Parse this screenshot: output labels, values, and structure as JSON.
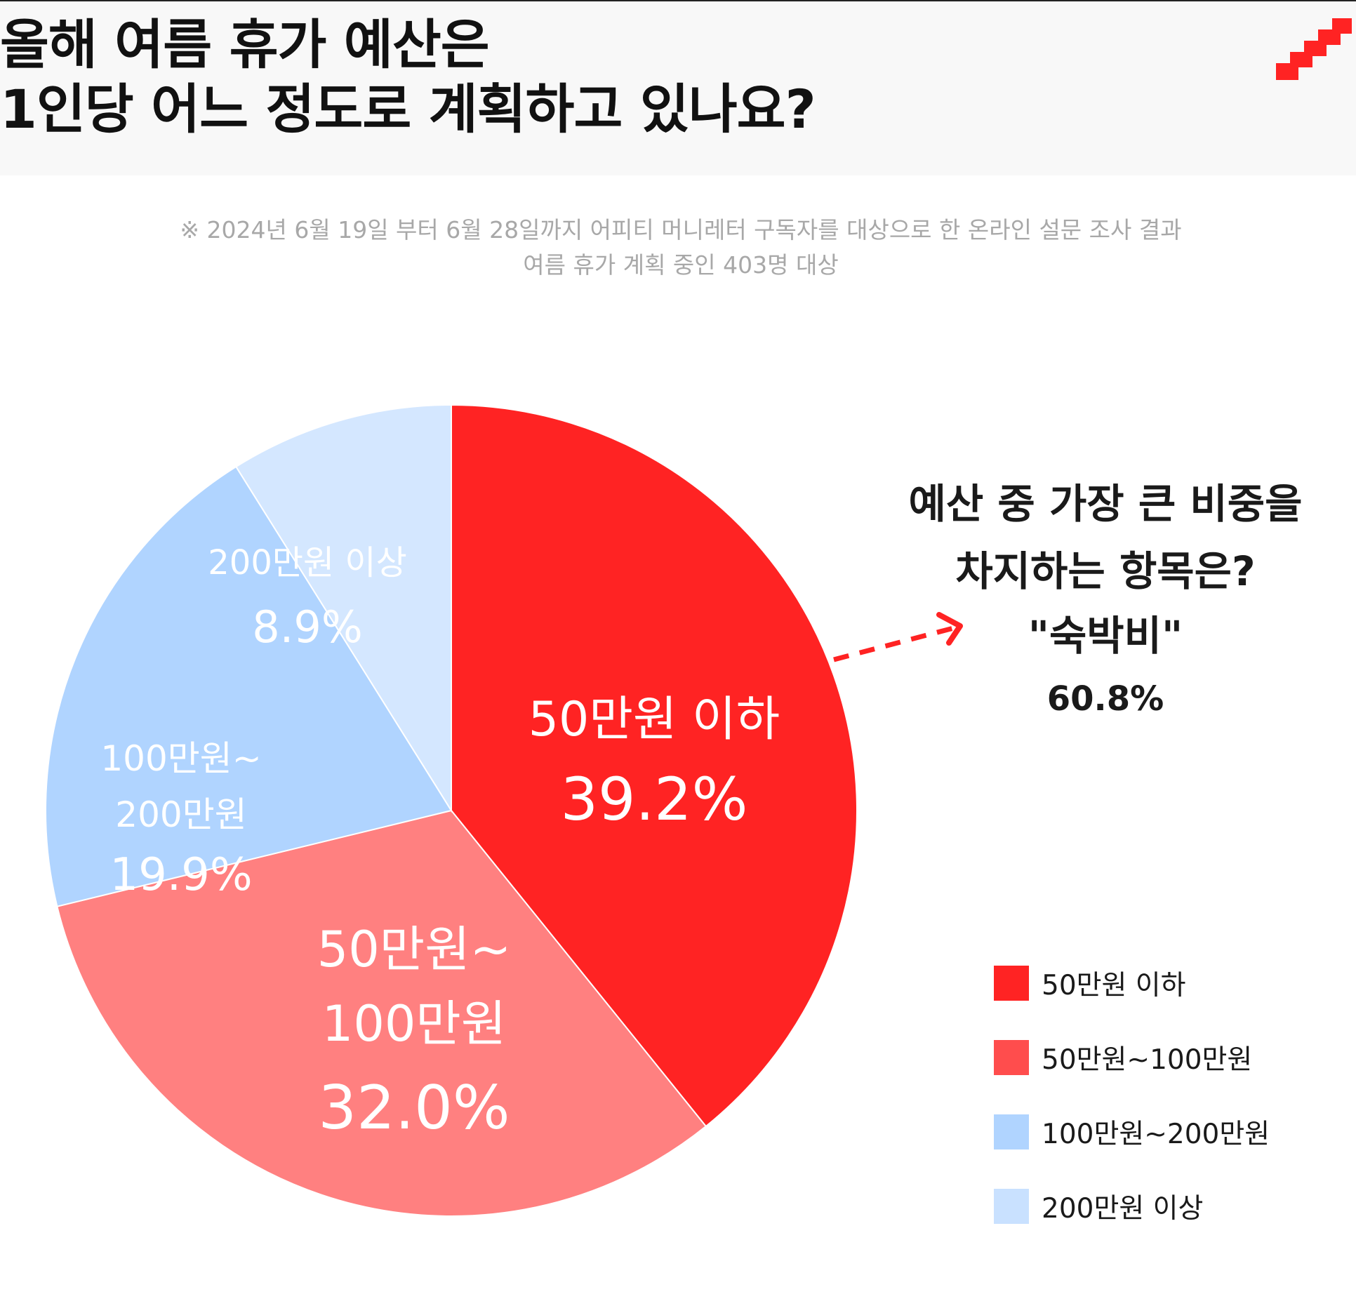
{
  "header": {
    "title_line1": "올해 여름 휴가 예산은",
    "title_line2": "1인당 어느 정도로 계획하고 있나요?"
  },
  "note": {
    "line1": "※ 2024년 6월 19일 부터 6월 28일까지 어피티 머니레터 구독자를 대상으로 한 온라인 설문 조사 결과",
    "line2": "여름 휴가 계획 중인 403명 대상"
  },
  "highlight": {
    "question_line1": "예산 중 가장 큰 비중을",
    "question_line2": "차지하는 항목은?",
    "answer": "\"숙박비\"",
    "answer_value": "60.8%"
  },
  "colors": {
    "accent": "#ff2323"
  },
  "chart_data": {
    "type": "pie",
    "unit": "%",
    "slices": [
      {
        "name": "50만원 이하",
        "label_lines": [
          "50만원 이하"
        ],
        "value": 39.2,
        "value_label": "39.2%",
        "color": "#ff2323"
      },
      {
        "name": "50만원~100만원",
        "label_lines": [
          "50만원~",
          "100만원"
        ],
        "value": 32.0,
        "value_label": "32.0%",
        "color": "#ff8080"
      },
      {
        "name": "100만원~200만원",
        "label_lines": [
          "100만원~",
          "200만원"
        ],
        "value": 19.9,
        "value_label": "19.9%",
        "color": "#b0d4ff"
      },
      {
        "name": "200만원 이상",
        "label_lines": [
          "200만원 이상"
        ],
        "value": 8.9,
        "value_label": "8.9%",
        "color": "#d4e7ff"
      }
    ],
    "legend": {
      "placement": "bottom-right",
      "entries": [
        {
          "label": "50만원 이하",
          "color": "#ff2323"
        },
        {
          "label": "50만원~100만원",
          "color": "#ff4d4d"
        },
        {
          "label": "100만원~200만원",
          "color": "#b0d4ff"
        },
        {
          "label": "200만원 이상",
          "color": "#c9e1ff"
        }
      ]
    }
  }
}
